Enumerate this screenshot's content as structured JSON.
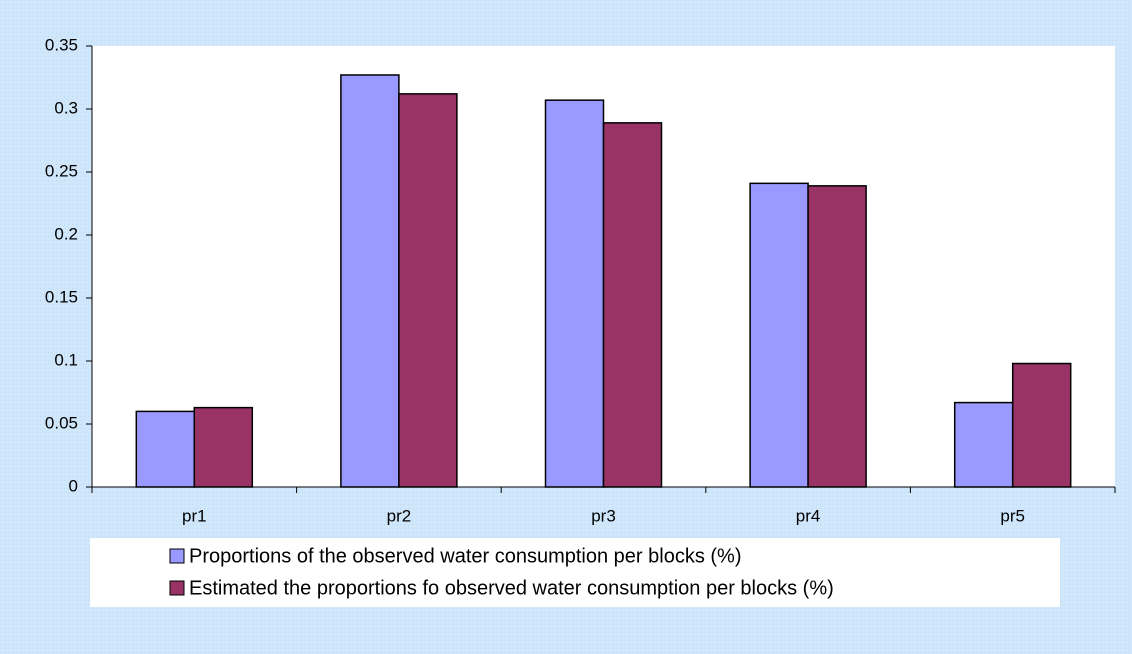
{
  "chart_data": {
    "type": "bar",
    "categories": [
      "pr1",
      "pr2",
      "pr3",
      "pr4",
      "pr5"
    ],
    "series": [
      {
        "name": "Proportions of the observed water consumption per blocks (%)",
        "color": "#9999ff",
        "values": [
          0.06,
          0.327,
          0.307,
          0.241,
          0.067
        ]
      },
      {
        "name": "Estimated the proportions fo observed water consumption per blocks (%)",
        "color": "#993366",
        "values": [
          0.063,
          0.312,
          0.289,
          0.239,
          0.098
        ]
      }
    ],
    "ylim": [
      0,
      0.35
    ],
    "yticks": [
      0,
      0.05,
      0.1,
      0.15,
      0.2,
      0.25,
      0.3,
      0.35
    ],
    "grid": false,
    "legend": "bottom"
  }
}
